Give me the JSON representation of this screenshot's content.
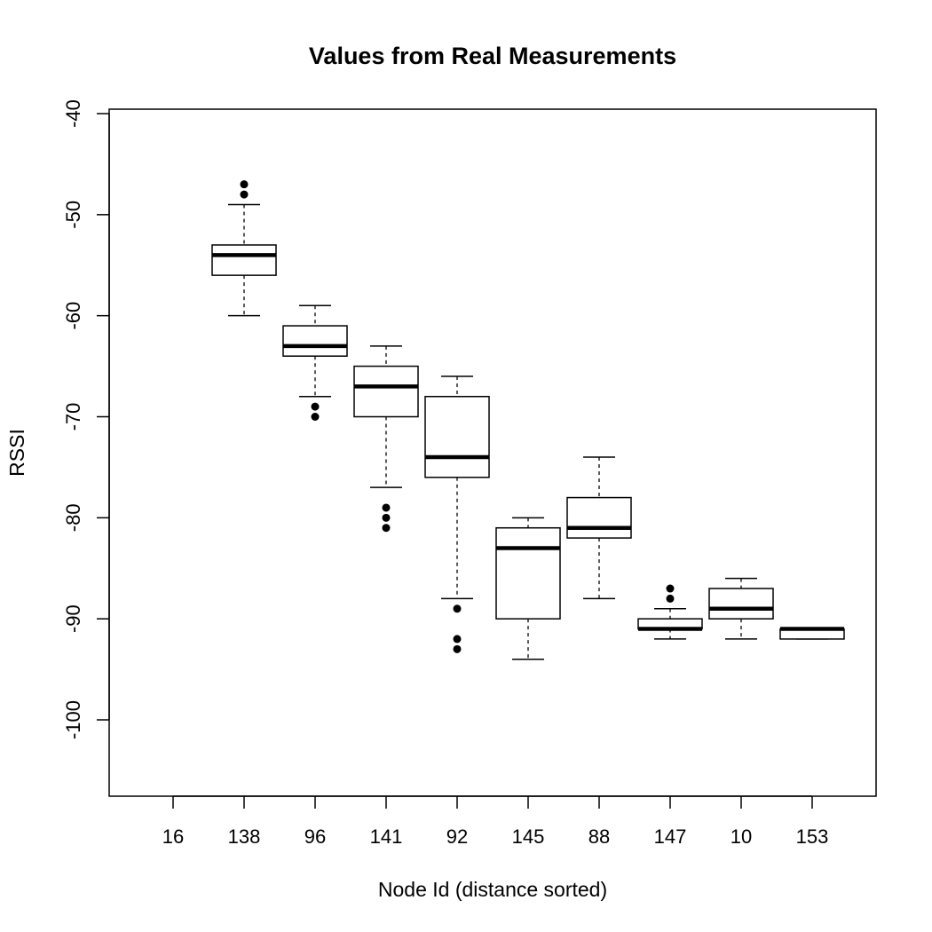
{
  "chart_data": {
    "type": "box",
    "title": "Values from Real Measurements",
    "xlabel": "Node Id (distance sorted)",
    "ylabel": "RSSI",
    "ylim": [
      -107,
      -39.5
    ],
    "y_ticks": [
      "-40",
      "-50",
      "-60",
      "-70",
      "-80",
      "-90",
      "-100"
    ],
    "y_tick_values": [
      -40,
      -50,
      -60,
      -70,
      -80,
      -90,
      -100
    ],
    "categories": [
      "16",
      "138",
      "96",
      "141",
      "92",
      "145",
      "88",
      "147",
      "10",
      "153"
    ],
    "boxes": [
      {
        "category": "16",
        "empty": true
      },
      {
        "category": "138",
        "whisker_low": -60,
        "q1": -56,
        "median": -54,
        "q3": -53,
        "whisker_high": -49,
        "outliers": [
          -47,
          -48
        ]
      },
      {
        "category": "96",
        "whisker_low": -68,
        "q1": -64,
        "median": -63,
        "q3": -61,
        "whisker_high": -59,
        "outliers": [
          -69,
          -70
        ]
      },
      {
        "category": "141",
        "whisker_low": -77,
        "q1": -70,
        "median": -67,
        "q3": -65,
        "whisker_high": -63,
        "outliers": [
          -79,
          -80,
          -81
        ]
      },
      {
        "category": "92",
        "whisker_low": -88,
        "q1": -76,
        "median": -74,
        "q3": -68,
        "whisker_high": -66,
        "outliers": [
          -89,
          -92,
          -93
        ]
      },
      {
        "category": "145",
        "whisker_low": -94,
        "q1": -90,
        "median": -83,
        "q3": -81,
        "whisker_high": -80,
        "outliers": []
      },
      {
        "category": "88",
        "whisker_low": -88,
        "q1": -82,
        "median": -81,
        "q3": -78,
        "whisker_high": -74,
        "outliers": []
      },
      {
        "category": "147",
        "whisker_low": -92,
        "q1": -91,
        "median": -91,
        "q3": -90,
        "whisker_high": -89,
        "outliers": [
          -87,
          -88
        ]
      },
      {
        "category": "10",
        "whisker_low": -92,
        "q1": -90,
        "median": -89,
        "q3": -87,
        "whisker_high": -86,
        "outliers": []
      },
      {
        "category": "153",
        "whisker_low": -92,
        "q1": -92,
        "median": -91,
        "q3": -91,
        "whisker_high": -91,
        "outliers": []
      }
    ],
    "grid": false,
    "legend": "none"
  }
}
